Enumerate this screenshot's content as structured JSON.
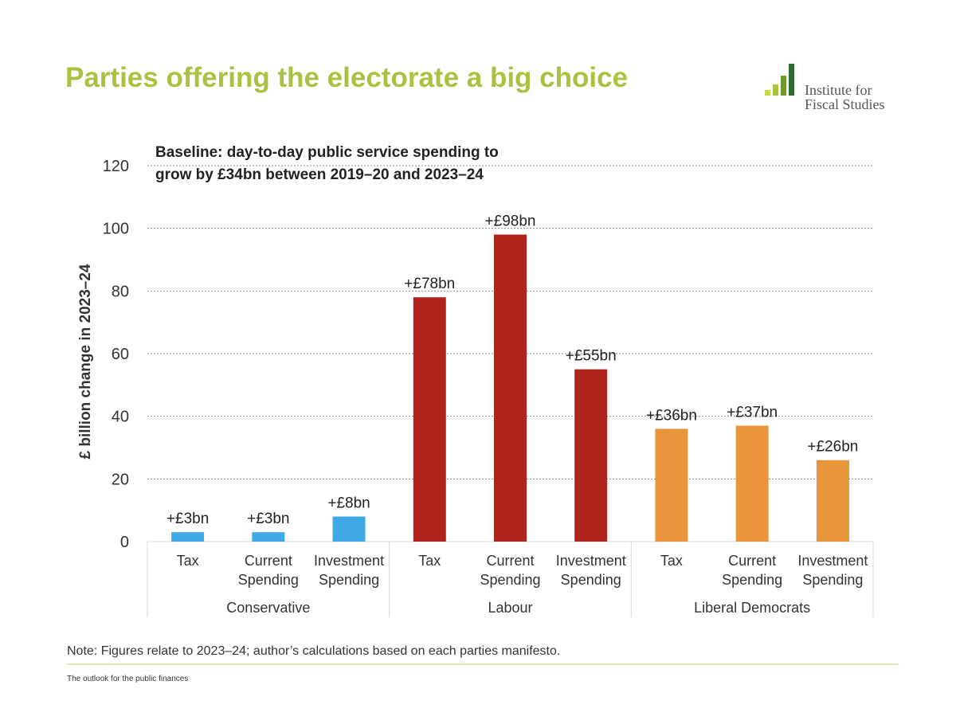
{
  "slide": {
    "title": "Parties offering the electorate a big choice",
    "logo": {
      "line1": "Institute for",
      "line2": "Fiscal Studies",
      "colors": [
        "#c8d84a",
        "#a9c23f",
        "#6d9a2a",
        "#2e6b2e"
      ]
    },
    "note": "Note: Figures relate to 2023–24; author’s calculations based on each parties manifesto.",
    "footer": "The outlook for the public finances"
  },
  "chart_data": {
    "type": "bar",
    "annotation_lines": [
      "Baseline: day-to-day public service spending to",
      "grow by £34bn between 2019–20 and 2023–24"
    ],
    "ylabel": "£ billion change in 2023–24",
    "xlabel": "",
    "ylim": [
      0,
      120
    ],
    "yticks": [
      0,
      20,
      40,
      60,
      80,
      100,
      120
    ],
    "grid": true,
    "groups": [
      {
        "name": "Conservative",
        "color": "#3fa9e6",
        "bars": [
          {
            "label_lines": [
              "Tax"
            ],
            "value": 3,
            "data_label": "+£3bn"
          },
          {
            "label_lines": [
              "Current",
              "Spending"
            ],
            "value": 3,
            "data_label": "+£3bn"
          },
          {
            "label_lines": [
              "Investment",
              "Spending"
            ],
            "value": 8,
            "data_label": "+£8bn"
          }
        ]
      },
      {
        "name": "Labour",
        "color": "#b0241c",
        "bars": [
          {
            "label_lines": [
              "Tax"
            ],
            "value": 78,
            "data_label": "+£78bn"
          },
          {
            "label_lines": [
              "Current",
              "Spending"
            ],
            "value": 98,
            "data_label": "+£98bn"
          },
          {
            "label_lines": [
              "Investment",
              "Spending"
            ],
            "value": 55,
            "data_label": "+£55bn"
          }
        ]
      },
      {
        "name": "Liberal Democrats",
        "color": "#e8953c",
        "bars": [
          {
            "label_lines": [
              "Tax"
            ],
            "value": 36,
            "data_label": "+£36bn"
          },
          {
            "label_lines": [
              "Current",
              "Spending"
            ],
            "value": 37,
            "data_label": "+£37bn"
          },
          {
            "label_lines": [
              "Investment",
              "Spending"
            ],
            "value": 26,
            "data_label": "+£26bn"
          }
        ]
      }
    ]
  }
}
